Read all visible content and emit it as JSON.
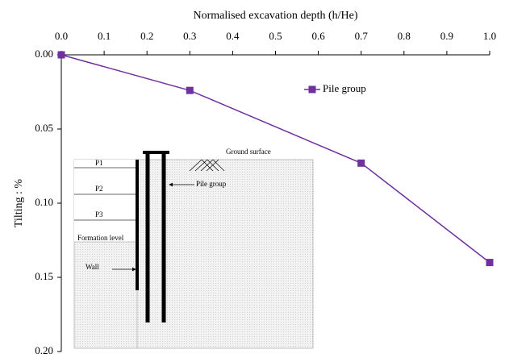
{
  "chart_data": {
    "type": "line",
    "title": "Normalised excavation depth (h/He)",
    "y_label": "Tilting : %",
    "x": [
      0.0,
      0.3,
      0.7,
      1.0
    ],
    "series": [
      {
        "name": "Pile group",
        "color": "#7030a0",
        "values": [
          0.0,
          0.024,
          0.073,
          0.14
        ]
      }
    ],
    "xlim": [
      0,
      1
    ],
    "xticks": [
      {
        "value": 0,
        "label": "0.0"
      },
      0.1,
      0.2,
      0.3,
      0.4,
      0.5,
      0.6,
      0.7,
      0.8,
      0.9,
      {
        "value": 1,
        "label": "1.0"
      }
    ],
    "ylim": [
      0,
      0.2
    ],
    "yticks": [
      {
        "value": 0,
        "label": "0.00"
      },
      0.05,
      {
        "value": 0.1,
        "label": "0.10"
      },
      0.15,
      {
        "value": 0.2,
        "label": "0.20"
      }
    ],
    "y_inverted": true,
    "x_axis_position": "top",
    "legend": "top-right",
    "annotations": [
      "P1",
      "P2",
      "P3",
      "Formation level",
      "Wall",
      "Pile group",
      "Ground surface"
    ]
  }
}
